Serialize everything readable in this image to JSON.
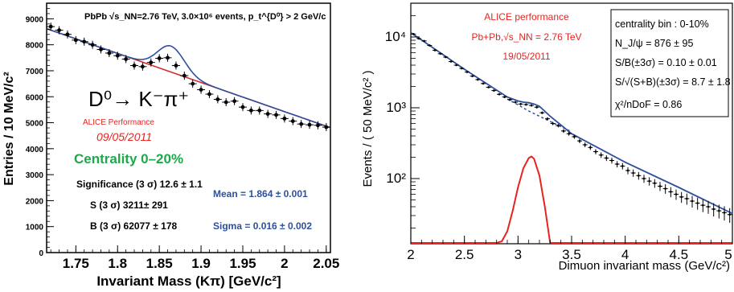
{
  "chart_data": [
    {
      "type": "scatter",
      "ylabel": "Entries / 10 MeV/c²",
      "xlabel": "Invariant Mass (Kπ) [GeV/c²]",
      "xlim": [
        1.715,
        2.055
      ],
      "ylim": [
        0,
        9600
      ],
      "x_ticks": [
        "1.75",
        "1.8",
        "1.85",
        "1.9",
        "1.95",
        "2",
        "2.05"
      ],
      "x_tick_values": [
        1.75,
        1.8,
        1.85,
        1.9,
        1.95,
        2.0,
        2.05
      ],
      "y_ticks": [
        "0",
        "1000",
        "2000",
        "3000",
        "4000",
        "5000",
        "6000",
        "7000",
        "8000",
        "9000"
      ],
      "y_tick_values": [
        0,
        1000,
        2000,
        3000,
        4000,
        5000,
        6000,
        7000,
        8000,
        9000
      ],
      "header": "PbPb √s_NN=2.76 TeV, 3.0×10⁶ events, p_t^{D⁰} > 2 GeV/c",
      "decay": "D⁰→ K⁻π⁺",
      "perf_label": "ALICE Performance",
      "date": "09/05/2011",
      "centrality": "Centrality 0–20%",
      "stats": [
        "Significance (3 σ) 12.6 ± 1.1",
        "S (3 σ) 3211± 291",
        "B (3 σ) 62077 ± 178"
      ],
      "fit": [
        "Mean = 1.864 ± 0.001",
        "Sigma = 0.016 ± 0.002"
      ],
      "series": [
        {
          "type": "points",
          "x": [
            1.72,
            1.73,
            1.74,
            1.75,
            1.76,
            1.77,
            1.78,
            1.79,
            1.8,
            1.81,
            1.82,
            1.83,
            1.84,
            1.85,
            1.86,
            1.87,
            1.88,
            1.89,
            1.9,
            1.91,
            1.92,
            1.93,
            1.94,
            1.95,
            1.96,
            1.97,
            1.98,
            1.99,
            2.0,
            2.01,
            2.02,
            2.03,
            2.04,
            2.05
          ],
          "values": [
            8700,
            8560,
            8400,
            8180,
            8120,
            8000,
            7820,
            7680,
            7580,
            7450,
            7200,
            7160,
            7320,
            7480,
            7500,
            7200,
            6810,
            6500,
            6270,
            6100,
            5900,
            5790,
            5830,
            5600,
            5470,
            5470,
            5340,
            5300,
            5160,
            5060,
            4950,
            4920,
            4900,
            4830
          ]
        },
        {
          "type": "fit",
          "x": [
            1.715,
            1.8,
            1.85,
            1.865,
            1.88,
            1.9,
            2.0,
            2.055
          ],
          "values": [
            8620,
            7390,
            6710,
            6520,
            6330,
            6080,
            5100,
            4810
          ]
        }
      ]
    },
    {
      "type": "scatter",
      "ylabel": "Events / ( 50 MeV/c² )",
      "xlabel": "Dimuon invariant mass (GeV/c²)",
      "xlim": [
        2.0,
        5.0
      ],
      "ylim": [
        12,
        30000
      ],
      "yscale": "log",
      "x_ticks": [
        "2",
        "2.5",
        "3",
        "3.5",
        "4",
        "4.5",
        "5"
      ],
      "x_tick_values": [
        2.0,
        2.5,
        3.0,
        3.5,
        4.0,
        4.5,
        5.0
      ],
      "y_ticks": [
        "10²",
        "10³",
        "10⁴"
      ],
      "y_tick_values": [
        100,
        1000,
        10000
      ],
      "perf_label": "ALICE performance",
      "system": "Pb+Pb,√s_NN = 2.76 TeV",
      "date": "19/05/2011",
      "box": [
        "centrality bin : 0-10%",
        "N_J/ψ = 876 ± 95",
        "S/B(±3σ) = 0.10 ± 0.01",
        "S/√(S+B)(±3σ) = 8.7 ± 1.8",
        "χ²/nDoF = 0.86"
      ],
      "series": [
        {
          "name": "",
          "type": "points",
          "x": [
            2.025,
            2.075,
            2.125,
            2.175,
            2.225,
            2.275,
            2.325,
            2.375,
            2.425,
            2.475,
            2.525,
            2.575,
            2.625,
            2.675,
            2.725,
            2.775,
            2.825,
            2.875,
            2.925,
            2.975,
            3.025,
            3.075,
            3.125,
            3.175,
            3.225,
            3.275,
            3.325,
            3.375,
            3.425,
            3.475,
            3.525,
            3.575,
            3.625,
            3.675,
            3.725,
            3.775,
            3.825,
            3.875,
            3.925,
            3.975,
            4.025,
            4.075,
            4.125,
            4.175,
            4.225,
            4.275,
            4.325,
            4.375,
            4.425,
            4.475,
            4.525,
            4.575,
            4.625,
            4.675,
            4.725,
            4.775,
            4.825,
            4.875,
            4.925,
            4.975
          ],
          "values": [
            11000,
            9500,
            8800,
            7600,
            6500,
            5800,
            5200,
            4500,
            4000,
            3600,
            3200,
            2800,
            2500,
            2200,
            1950,
            1750,
            1550,
            1420,
            1300,
            1200,
            1130,
            1110,
            1080,
            1020,
            850,
            700,
            600,
            560,
            470,
            430,
            390,
            340,
            300,
            275,
            240,
            215,
            195,
            180,
            160,
            150,
            130,
            120,
            110,
            100,
            92,
            86,
            78,
            72,
            65,
            60,
            55,
            52,
            48,
            45,
            42,
            40,
            37,
            35,
            33,
            31
          ]
        },
        {
          "name": "",
          "type": "fit_total",
          "x": [
            2.0,
            2.5,
            2.9,
            3.0,
            3.05,
            3.1,
            3.15,
            3.2,
            3.3,
            3.5,
            4.0,
            4.5,
            5.0
          ],
          "values": [
            11500,
            3500,
            1420,
            1250,
            1200,
            1180,
            1130,
            1050,
            760,
            430,
            170,
            75,
            32
          ]
        },
        {
          "name": "",
          "type": "background",
          "x": [
            2.9,
            3.0,
            3.1,
            3.2,
            3.3,
            3.4,
            3.5
          ],
          "values": [
            1330,
            1100,
            900,
            760,
            640,
            540,
            460
          ]
        },
        {
          "name": "",
          "type": "signal",
          "x": [
            2.8,
            2.85,
            2.9,
            2.95,
            3.0,
            3.05,
            3.1,
            3.125,
            3.15,
            3.2,
            3.25,
            3.3,
            3.35
          ],
          "values": [
            12,
            13,
            18,
            35,
            75,
            140,
            195,
            205,
            190,
            110,
            40,
            12,
            12
          ]
        }
      ]
    }
  ]
}
